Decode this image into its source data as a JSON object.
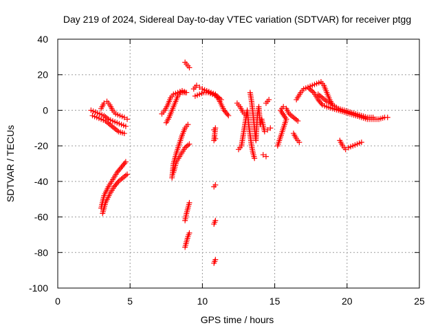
{
  "chart_data": {
    "type": "scatter",
    "title": "Day 219 of 2024, Sidereal Day-to-day VTEC variation (SDTVAR) for receiver ptgg",
    "xlabel": "GPS time / hours",
    "ylabel": "SDTVAR / TECUs",
    "xlim": [
      0,
      25
    ],
    "ylim": [
      -100,
      40
    ],
    "xticks": [
      0,
      5,
      10,
      15,
      20,
      25
    ],
    "yticks": [
      -100,
      -80,
      -60,
      -40,
      -20,
      0,
      20,
      40
    ],
    "grid": true,
    "marker": "+",
    "color": "#ff0000",
    "series": [
      {
        "name": "trace-1",
        "points": [
          [
            2.3,
            0
          ],
          [
            2.6,
            -1
          ],
          [
            2.9,
            -2
          ],
          [
            3.2,
            -3
          ],
          [
            3.5,
            -5
          ],
          [
            3.8,
            -6
          ],
          [
            4.1,
            -7
          ],
          [
            4.4,
            -8
          ],
          [
            4.7,
            -9
          ]
        ]
      },
      {
        "name": "trace-2",
        "points": [
          [
            2.4,
            -3
          ],
          [
            2.7,
            -4
          ],
          [
            3.0,
            -5
          ],
          [
            3.3,
            -6
          ],
          [
            3.6,
            -8
          ],
          [
            3.9,
            -10
          ],
          [
            4.2,
            -12
          ],
          [
            4.6,
            -13
          ]
        ]
      },
      {
        "name": "trace-3",
        "points": [
          [
            3.0,
            1
          ],
          [
            3.2,
            4
          ],
          [
            3.4,
            5
          ],
          [
            3.6,
            3
          ],
          [
            3.8,
            0
          ],
          [
            4.0,
            -2
          ],
          [
            4.3,
            -3
          ],
          [
            4.6,
            -4
          ],
          [
            4.8,
            -5
          ]
        ]
      },
      {
        "name": "trace-4",
        "points": [
          [
            3.0,
            -55
          ],
          [
            3.2,
            -48
          ],
          [
            3.5,
            -43
          ],
          [
            3.8,
            -39
          ],
          [
            4.1,
            -35
          ],
          [
            4.4,
            -32
          ],
          [
            4.7,
            -29
          ]
        ]
      },
      {
        "name": "trace-5",
        "points": [
          [
            3.1,
            -58
          ],
          [
            3.3,
            -52
          ],
          [
            3.6,
            -47
          ],
          [
            3.9,
            -43
          ],
          [
            4.2,
            -40
          ],
          [
            4.5,
            -38
          ],
          [
            4.8,
            -36
          ]
        ]
      },
      {
        "name": "trace-6",
        "points": [
          [
            7.2,
            -2
          ],
          [
            7.4,
            0
          ],
          [
            7.6,
            3
          ],
          [
            7.8,
            7
          ],
          [
            8.0,
            9
          ],
          [
            8.3,
            10
          ],
          [
            8.6,
            11
          ],
          [
            8.9,
            10
          ]
        ]
      },
      {
        "name": "trace-7",
        "points": [
          [
            7.5,
            -7
          ],
          [
            7.7,
            -4
          ],
          [
            7.9,
            0
          ],
          [
            8.1,
            4
          ],
          [
            8.3,
            8
          ],
          [
            8.5,
            10
          ],
          [
            8.8,
            10
          ]
        ]
      },
      {
        "name": "trace-8",
        "points": [
          [
            7.9,
            -38
          ],
          [
            8.0,
            -30
          ],
          [
            8.2,
            -24
          ],
          [
            8.4,
            -19
          ],
          [
            8.6,
            -14
          ],
          [
            8.8,
            -10
          ],
          [
            9.0,
            -8
          ]
        ]
      },
      {
        "name": "trace-9",
        "points": [
          [
            8.0,
            -35
          ],
          [
            8.2,
            -29
          ],
          [
            8.5,
            -25
          ],
          [
            8.8,
            -21
          ],
          [
            9.1,
            -19
          ]
        ]
      },
      {
        "name": "trace-10",
        "points": [
          [
            8.8,
            27
          ],
          [
            8.9,
            26
          ],
          [
            9.0,
            25
          ],
          [
            9.1,
            24
          ]
        ]
      },
      {
        "name": "trace-11",
        "points": [
          [
            8.8,
            -62
          ],
          [
            8.9,
            -58
          ],
          [
            9.0,
            -55
          ],
          [
            9.1,
            -52
          ]
        ]
      },
      {
        "name": "trace-12",
        "points": [
          [
            8.8,
            -77
          ],
          [
            8.9,
            -74
          ],
          [
            9.0,
            -71
          ],
          [
            9.1,
            -69
          ]
        ]
      },
      {
        "name": "trace-13",
        "points": [
          [
            9.4,
            12
          ],
          [
            9.6,
            14
          ],
          [
            9.8,
            13
          ],
          [
            10.0,
            12
          ],
          [
            10.3,
            11
          ],
          [
            10.6,
            10
          ],
          [
            10.9,
            9
          ],
          [
            11.2,
            5
          ],
          [
            11.5,
            0
          ],
          [
            11.8,
            -3
          ]
        ]
      },
      {
        "name": "trace-14",
        "points": [
          [
            9.5,
            8
          ],
          [
            9.8,
            9
          ],
          [
            10.1,
            10
          ],
          [
            10.4,
            10
          ],
          [
            10.7,
            9
          ],
          [
            11.0,
            8
          ],
          [
            11.3,
            6
          ]
        ]
      },
      {
        "name": "trace-15",
        "points": [
          [
            10.8,
            -43
          ],
          [
            10.9,
            -42
          ]
        ]
      },
      {
        "name": "trace-16",
        "points": [
          [
            10.8,
            -64
          ],
          [
            10.9,
            -62
          ]
        ]
      },
      {
        "name": "trace-17",
        "points": [
          [
            10.8,
            -86
          ],
          [
            10.9,
            -84
          ]
        ]
      },
      {
        "name": "trace-18",
        "points": [
          [
            10.8,
            -11
          ],
          [
            10.9,
            -10
          ],
          [
            10.8,
            -17
          ],
          [
            10.9,
            -16
          ]
        ]
      },
      {
        "name": "trace-19",
        "points": [
          [
            12.5,
            -22
          ],
          [
            12.7,
            -20
          ],
          [
            12.8,
            -15
          ],
          [
            12.9,
            -10
          ],
          [
            13.0,
            -5
          ],
          [
            13.1,
            0
          ],
          [
            13.2,
            -8
          ],
          [
            13.3,
            -14
          ],
          [
            13.4,
            -20
          ],
          [
            13.5,
            -24
          ],
          [
            13.6,
            -27
          ],
          [
            13.3,
            10
          ],
          [
            13.4,
            5
          ],
          [
            13.5,
            -2
          ],
          [
            13.6,
            -10
          ],
          [
            13.7,
            -17
          ],
          [
            13.8,
            -3
          ],
          [
            13.9,
            2
          ],
          [
            14.0,
            -8
          ],
          [
            14.1,
            -5
          ],
          [
            14.3,
            -12
          ],
          [
            14.5,
            -11
          ],
          [
            14.7,
            -10
          ],
          [
            14.2,
            -25
          ],
          [
            14.4,
            -26
          ],
          [
            14.6,
            6
          ],
          [
            14.4,
            4
          ]
        ]
      },
      {
        "name": "trace-20",
        "points": [
          [
            12.4,
            4
          ],
          [
            12.6,
            2
          ],
          [
            12.8,
            -1
          ],
          [
            13.0,
            -3
          ]
        ]
      },
      {
        "name": "trace-21",
        "points": [
          [
            15.2,
            -20
          ],
          [
            15.4,
            -15
          ],
          [
            15.6,
            -10
          ],
          [
            15.8,
            -5
          ],
          [
            15.4,
            0
          ],
          [
            15.6,
            2
          ],
          [
            15.8,
            1
          ],
          [
            16.0,
            -2
          ],
          [
            16.3,
            -4
          ],
          [
            16.6,
            -6
          ]
        ]
      },
      {
        "name": "trace-22",
        "points": [
          [
            16.3,
            -13
          ],
          [
            16.5,
            -16
          ],
          [
            16.7,
            -18
          ]
        ]
      },
      {
        "name": "trace-23",
        "points": [
          [
            16.5,
            6
          ],
          [
            16.8,
            10
          ],
          [
            17.0,
            12
          ],
          [
            17.3,
            13
          ],
          [
            17.6,
            14
          ],
          [
            17.9,
            15
          ],
          [
            18.2,
            16
          ],
          [
            18.4,
            14
          ],
          [
            18.6,
            10
          ],
          [
            18.8,
            6
          ],
          [
            19.0,
            3
          ]
        ]
      },
      {
        "name": "trace-24",
        "points": [
          [
            17.4,
            12
          ],
          [
            17.7,
            10
          ],
          [
            18.0,
            6
          ],
          [
            18.3,
            3
          ],
          [
            18.6,
            2
          ],
          [
            19.0,
            1
          ],
          [
            19.4,
            0
          ],
          [
            19.8,
            -1
          ],
          [
            20.2,
            -2
          ],
          [
            20.6,
            -3
          ],
          [
            21.0,
            -4
          ],
          [
            21.4,
            -5
          ],
          [
            21.8,
            -5
          ],
          [
            22.2,
            -5
          ],
          [
            22.6,
            -4
          ],
          [
            22.8,
            -4
          ]
        ]
      },
      {
        "name": "trace-25",
        "points": [
          [
            18.0,
            9
          ],
          [
            18.3,
            7
          ],
          [
            18.6,
            5
          ],
          [
            19.0,
            3
          ],
          [
            19.4,
            1
          ],
          [
            19.8,
            0
          ],
          [
            20.2,
            -1
          ],
          [
            20.6,
            -2
          ],
          [
            21.0,
            -3
          ],
          [
            21.4,
            -4
          ],
          [
            21.8,
            -4
          ]
        ]
      },
      {
        "name": "trace-26",
        "points": [
          [
            19.5,
            -17
          ],
          [
            19.7,
            -20
          ],
          [
            19.9,
            -22
          ],
          [
            20.1,
            -21
          ],
          [
            20.4,
            -20
          ],
          [
            20.7,
            -19
          ],
          [
            21.0,
            -18
          ]
        ]
      }
    ]
  }
}
